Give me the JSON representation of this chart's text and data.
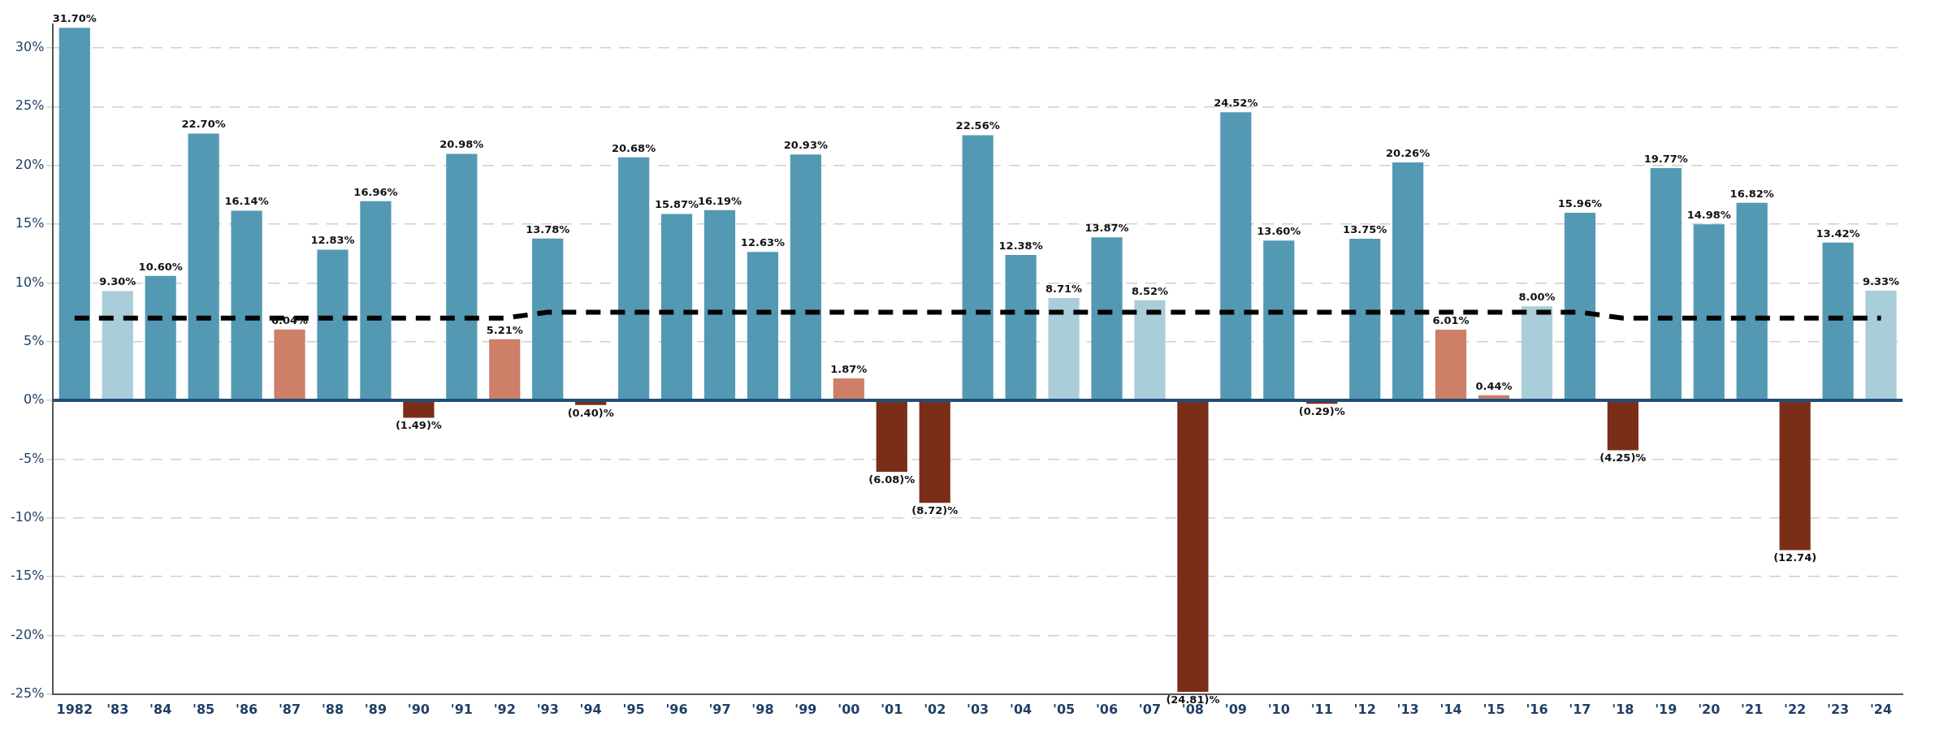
{
  "chart_data": {
    "type": "bar",
    "categories": [
      "1982",
      "'83",
      "'84",
      "'85",
      "'86",
      "'87",
      "'88",
      "'89",
      "'90",
      "'91",
      "'92",
      "'93",
      "'94",
      "'95",
      "'96",
      "'97",
      "'98",
      "'99",
      "'00",
      "'01",
      "'02",
      "'03",
      "'04",
      "'05",
      "'06",
      "'07",
      "'08",
      "'09",
      "'10",
      "'11",
      "'12",
      "'13",
      "'14",
      "'15",
      "'16",
      "'17",
      "'18",
      "'19",
      "'20",
      "'21",
      "'22",
      "'23",
      "'24"
    ],
    "series": [
      {
        "values": [
          31.7,
          9.3,
          10.6,
          22.7,
          16.14,
          6.04,
          12.83,
          16.96,
          -1.49,
          20.98,
          5.21,
          13.78,
          -0.4,
          20.68,
          15.87,
          16.19,
          12.63,
          20.93,
          1.87,
          -6.08,
          -8.72,
          22.56,
          12.38,
          8.71,
          13.87,
          8.52,
          -24.81,
          24.52,
          13.6,
          -0.29,
          13.75,
          20.26,
          6.01,
          0.44,
          8.0,
          15.96,
          -4.25,
          19.77,
          14.98,
          16.82,
          -12.74,
          13.42,
          9.33
        ],
        "colors": [
          "#5499b3",
          "#a9cdd9",
          "#5499b3",
          "#5499b3",
          "#5499b3",
          "#cd7f68",
          "#5499b3",
          "#5499b3",
          "#7a2e18",
          "#5499b3",
          "#cd7f68",
          "#5499b3",
          "#7a2e18",
          "#5499b3",
          "#5499b3",
          "#5499b3",
          "#5499b3",
          "#5499b3",
          "#cd7f68",
          "#7a2e18",
          "#7a2e18",
          "#5499b3",
          "#5499b3",
          "#a9cdd9",
          "#5499b3",
          "#a9cdd9",
          "#7a2e18",
          "#5499b3",
          "#5499b3",
          "#7a2e18",
          "#5499b3",
          "#5499b3",
          "#cd7f68",
          "#cd7f68",
          "#a9cdd9",
          "#5499b3",
          "#7a2e18",
          "#5499b3",
          "#5499b3",
          "#5499b3",
          "#7a2e18",
          "#5499b3",
          "#a9cdd9"
        ],
        "value_labels": [
          "31.70%",
          "9.30%",
          "10.60%",
          "22.70%",
          "16.14%",
          "6.04%",
          "12.83%",
          "16.96%",
          "(1.49)%",
          "20.98%",
          "5.21%",
          "13.78%",
          "(0.40)%",
          "20.68%",
          "15.87%",
          "16.19%",
          "12.63%",
          "20.93%",
          "1.87%",
          "(6.08)%",
          "(8.72)%",
          "22.56%",
          "12.38%",
          "8.71%",
          "13.87%",
          "8.52%",
          "(24.81)%",
          "24.52%",
          "13.60%",
          "(0.29)%",
          "13.75%",
          "20.26%",
          "6.01%",
          "0.44%",
          "8.00%",
          "15.96%",
          "(4.25)%",
          "19.77%",
          "14.98%",
          "16.82%",
          "(12.74)",
          "13.42%",
          "9.33%"
        ]
      },
      {
        "type": "line",
        "color": "#000000",
        "line_style": "dashed",
        "marker": "none",
        "values": [
          7,
          7,
          7,
          7,
          7,
          7,
          7,
          7,
          7,
          7,
          7,
          7.5,
          7.5,
          7.5,
          7.5,
          7.5,
          7.5,
          7.5,
          7.5,
          7.5,
          7.5,
          7.5,
          7.5,
          7.5,
          7.5,
          7.5,
          7.5,
          7.5,
          7.5,
          7.5,
          7.5,
          7.5,
          7.5,
          7.5,
          7.5,
          7.5,
          7,
          7,
          7,
          7,
          7,
          7,
          7
        ]
      }
    ],
    "ylim": [
      -25,
      32
    ],
    "yticks": [
      {
        "value": -25,
        "label": "-25%"
      },
      {
        "value": -20,
        "label": "-20%"
      },
      {
        "value": -15,
        "label": "-15%"
      },
      {
        "value": -10,
        "label": "-10%"
      },
      {
        "value": -5,
        "label": "-5%"
      },
      {
        "value": 0,
        "label": "0%"
      },
      {
        "value": 5,
        "label": "5%"
      },
      {
        "value": 10,
        "label": "10%"
      },
      {
        "value": 15,
        "label": "15%"
      },
      {
        "value": 20,
        "label": "20%"
      },
      {
        "value": 25,
        "label": "25%"
      },
      {
        "value": 30,
        "label": "30%"
      }
    ],
    "ref_lines": [
      {
        "axis": "y",
        "value": 0,
        "color": "#1f4e79",
        "line_style": "solid"
      }
    ],
    "grid": "y"
  }
}
